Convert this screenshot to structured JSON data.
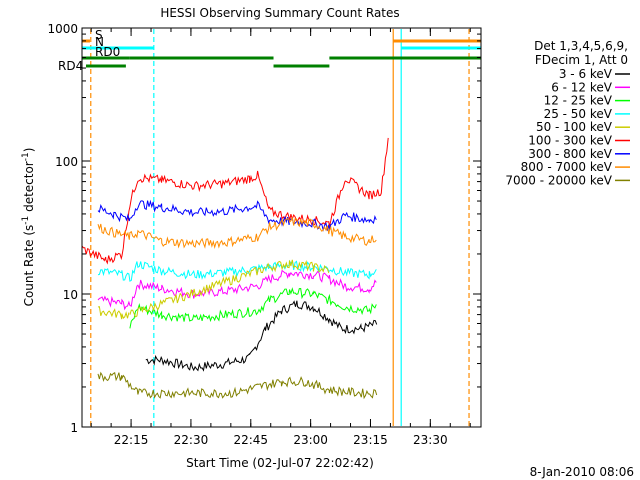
{
  "chart_data": {
    "type": "line",
    "title": "HESSI Observing Summary Count Rates",
    "xlabel": "Start Time (02-Jul-07 22:02:42)",
    "ylabel_main": "Count Rate (s",
    "ylabel_sup1": "-1",
    "ylabel_mid": " detector",
    "ylabel_sup2": "-1",
    "ylabel_end": ")",
    "yscale": "log",
    "ylim": [
      1,
      1000
    ],
    "xlim_min": [
      0,
      100
    ],
    "x_unit": "minutes after 22:02:42",
    "y_ticks": [
      {
        "value": 1,
        "label": "1"
      },
      {
        "value": 10,
        "label": "10"
      },
      {
        "value": 100,
        "label": "100"
      },
      {
        "value": 1000,
        "label": "1000"
      }
    ],
    "x_ticks": [
      {
        "value": 12.3,
        "label": "22:15"
      },
      {
        "value": 27.3,
        "label": "22:30"
      },
      {
        "value": 42.3,
        "label": "22:45"
      },
      {
        "value": 57.3,
        "label": "23:00"
      },
      {
        "value": 72.3,
        "label": "23:15"
      },
      {
        "value": 87.3,
        "label": "23:30"
      }
    ],
    "legend_header": [
      "Det 1,3,4,5,6,9,",
      "FDecim 1, Att 0"
    ],
    "legend_position": "right",
    "series": [
      {
        "name": "3 - 6 keV",
        "color": "#000000",
        "points": [
          [
            16,
            3.2
          ],
          [
            20,
            3.2
          ],
          [
            28,
            2.8
          ],
          [
            36,
            3.0
          ],
          [
            42,
            3.3
          ],
          [
            46,
            5.5
          ],
          [
            50,
            7.5
          ],
          [
            54,
            8.5
          ],
          [
            58,
            8.0
          ],
          [
            62,
            6.5
          ],
          [
            65,
            5.5
          ],
          [
            70,
            5.5
          ],
          [
            74,
            6.0
          ]
        ]
      },
      {
        "name": "6 - 12 keV",
        "color": "#ff00ff",
        "points": [
          [
            4,
            9.0
          ],
          [
            10,
            8.5
          ],
          [
            12,
            8.0
          ],
          [
            14,
            12
          ],
          [
            20,
            11
          ],
          [
            28,
            10
          ],
          [
            36,
            10.5
          ],
          [
            44,
            11.5
          ],
          [
            47,
            13
          ],
          [
            52,
            14.5
          ],
          [
            58,
            14
          ],
          [
            62,
            13
          ],
          [
            66,
            11.5
          ],
          [
            72,
            11
          ],
          [
            74,
            12.5
          ]
        ]
      },
      {
        "name": "12 - 25 keV",
        "color": "#00ff00",
        "points": [
          [
            12,
            5.5
          ],
          [
            14,
            8.0
          ],
          [
            20,
            7.0
          ],
          [
            28,
            6.5
          ],
          [
            36,
            7.0
          ],
          [
            44,
            7.5
          ],
          [
            47,
            9.0
          ],
          [
            52,
            10.5
          ],
          [
            58,
            10
          ],
          [
            62,
            9.0
          ],
          [
            66,
            8.0
          ],
          [
            72,
            7.5
          ],
          [
            74,
            8.5
          ]
        ]
      },
      {
        "name": "25 - 50 keV",
        "color": "#00ffff",
        "points": [
          [
            4,
            15
          ],
          [
            10,
            14
          ],
          [
            12,
            13
          ],
          [
            14,
            17
          ],
          [
            20,
            15
          ],
          [
            28,
            14
          ],
          [
            36,
            14.5
          ],
          [
            44,
            15.5
          ],
          [
            47,
            16
          ],
          [
            52,
            16.5
          ],
          [
            58,
            16
          ],
          [
            62,
            15.5
          ],
          [
            66,
            14.5
          ],
          [
            72,
            14
          ],
          [
            74,
            15.5
          ]
        ]
      },
      {
        "name": "50 - 100 keV",
        "color": "#cccc00",
        "points": [
          [
            4,
            7.5
          ],
          [
            10,
            7.0
          ],
          [
            12,
            7.0
          ],
          [
            47,
            16
          ],
          [
            52,
            17
          ],
          [
            58,
            16
          ],
          [
            62,
            15
          ]
        ]
      },
      {
        "name": "100 - 300 keV",
        "color": "#ff0000",
        "points": [
          [
            0,
            22
          ],
          [
            6,
            18
          ],
          [
            10,
            20
          ],
          [
            12,
            48
          ],
          [
            14,
            75
          ],
          [
            20,
            72
          ],
          [
            28,
            65
          ],
          [
            36,
            68
          ],
          [
            42,
            74
          ],
          [
            44,
            78
          ],
          [
            47,
            42
          ],
          [
            52,
            38
          ],
          [
            58,
            36
          ],
          [
            62,
            34
          ],
          [
            66,
            75
          ],
          [
            72,
            55
          ],
          [
            75,
            60
          ],
          [
            77,
            170
          ]
        ]
      },
      {
        "name": "300 - 800 keV",
        "color": "#0000ff",
        "points": [
          [
            4,
            44
          ],
          [
            8,
            40
          ],
          [
            12,
            36
          ],
          [
            14,
            48
          ],
          [
            20,
            45
          ],
          [
            28,
            41
          ],
          [
            36,
            42
          ],
          [
            44,
            46
          ],
          [
            47,
            36
          ],
          [
            52,
            35
          ],
          [
            58,
            34
          ],
          [
            62,
            32
          ],
          [
            66,
            39
          ],
          [
            72,
            36
          ],
          [
            74,
            38
          ]
        ]
      },
      {
        "name": "800 - 7000 keV",
        "color": "#ff8c00",
        "points": [
          [
            4,
            32
          ],
          [
            8,
            29
          ],
          [
            12,
            27
          ],
          [
            14,
            29
          ],
          [
            20,
            25
          ],
          [
            28,
            24
          ],
          [
            36,
            24.5
          ],
          [
            44,
            27
          ],
          [
            47,
            32
          ],
          [
            52,
            35
          ],
          [
            58,
            34
          ],
          [
            62,
            30
          ],
          [
            66,
            27
          ],
          [
            72,
            25
          ],
          [
            74,
            27
          ]
        ]
      },
      {
        "name": "7000 - 20000 keV",
        "color": "#808000",
        "points": [
          [
            4,
            2.4
          ],
          [
            10,
            2.4
          ],
          [
            14,
            1.8
          ],
          [
            22,
            1.8
          ],
          [
            30,
            1.8
          ],
          [
            38,
            1.8
          ],
          [
            44,
            2.0
          ],
          [
            50,
            2.2
          ],
          [
            56,
            2.2
          ],
          [
            62,
            1.9
          ],
          [
            70,
            1.8
          ],
          [
            74,
            1.8
          ]
        ]
      }
    ],
    "top_flags": [
      {
        "label": "S",
        "color": "#ff8c00",
        "segments": [
          [
            0,
            2
          ],
          [
            78,
            100
          ]
        ],
        "level": 1
      },
      {
        "label": "N",
        "color": "#00ffff",
        "segments": [
          [
            0,
            18
          ],
          [
            80,
            100
          ]
        ],
        "level": 2
      },
      {
        "label": "RD0",
        "color": "#008000",
        "segments": [
          [
            0,
            12
          ],
          [
            12,
            48
          ],
          [
            62,
            100
          ]
        ],
        "level": 3
      },
      {
        "label": "RD4",
        "color": "#008000",
        "segments": [
          [
            1,
            11
          ],
          [
            48,
            62
          ]
        ],
        "level": 4
      }
    ],
    "vertical_markers": [
      {
        "x": 2.2,
        "color": "#ff8c00",
        "style": "dashed"
      },
      {
        "x": 18,
        "color": "#00ffff",
        "style": "dashed"
      },
      {
        "x": 78,
        "color": "#ff8c00",
        "style": "solid"
      },
      {
        "x": 80,
        "color": "#00ffff",
        "style": "solid"
      },
      {
        "x": 97,
        "color": "#ff8c00",
        "style": "dashed"
      }
    ],
    "datestamp": "8-Jan-2010 08:06"
  }
}
